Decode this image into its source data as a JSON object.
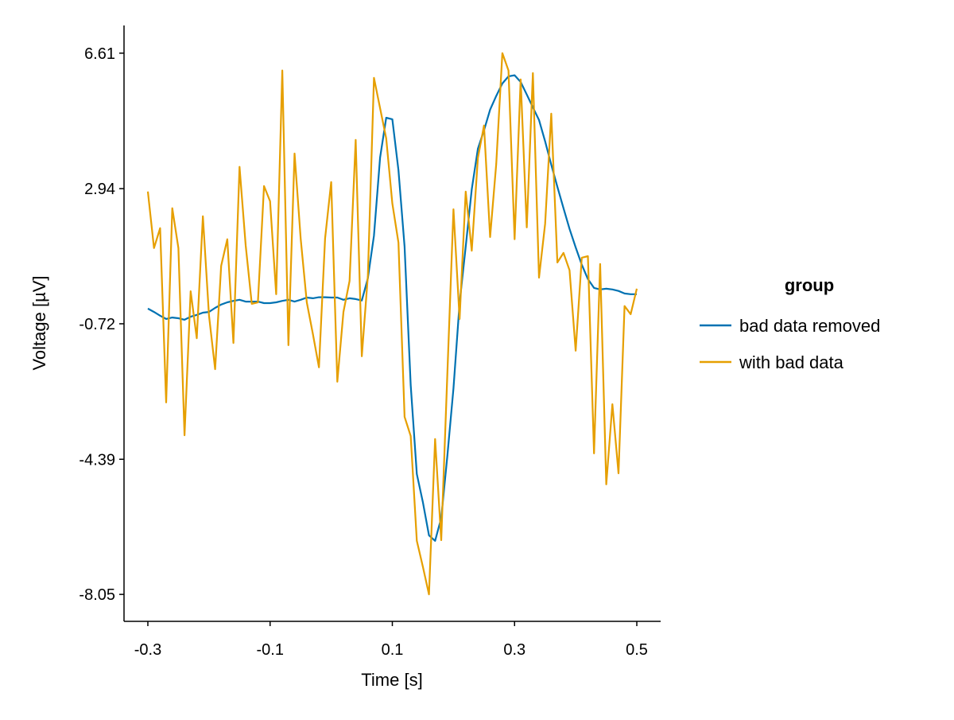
{
  "chart_data": {
    "type": "line",
    "title": "",
    "xlabel": "Time [s]",
    "ylabel": "Voltage [µV]",
    "xlim": [
      -0.339,
      0.539
    ],
    "ylim": [
      -8.78,
      7.36
    ],
    "xticks": [
      -0.3,
      -0.1,
      0.1,
      0.3,
      0.5
    ],
    "xtick_labels": [
      "-0.3",
      "-0.1",
      "0.1",
      "0.3",
      "0.5"
    ],
    "yticks": [
      6.61,
      2.94,
      -0.72,
      -4.39,
      -8.05
    ],
    "ytick_labels": [
      "6.61",
      "2.94",
      "-0.72",
      "-4.39",
      "-8.05"
    ],
    "grid": false,
    "legend": {
      "title": "group",
      "placement": "right"
    },
    "x_start": -0.3,
    "x_step": 0.01,
    "series": [
      {
        "name": "bad data removed",
        "color": "#0072B2",
        "values": [
          -0.31,
          -0.4,
          -0.5,
          -0.59,
          -0.55,
          -0.57,
          -0.61,
          -0.53,
          -0.48,
          -0.42,
          -0.4,
          -0.29,
          -0.2,
          -0.14,
          -0.1,
          -0.07,
          -0.12,
          -0.12,
          -0.12,
          -0.16,
          -0.16,
          -0.14,
          -0.1,
          -0.07,
          -0.12,
          -0.07,
          -0.01,
          -0.03,
          0.0,
          0.0,
          -0.01,
          -0.01,
          -0.07,
          -0.03,
          -0.05,
          -0.09,
          0.51,
          1.67,
          3.78,
          4.86,
          4.82,
          3.44,
          1.37,
          -2.38,
          -4.79,
          -5.55,
          -6.45,
          -6.6,
          -5.98,
          -4.3,
          -2.47,
          -0.16,
          1.37,
          2.92,
          4.02,
          4.52,
          5.08,
          5.45,
          5.79,
          5.98,
          6.01,
          5.83,
          5.49,
          5.14,
          4.8,
          4.22,
          3.59,
          2.99,
          2.41,
          1.85,
          1.35,
          0.88,
          0.49,
          0.25,
          0.21,
          0.23,
          0.21,
          0.17,
          0.1,
          0.08,
          0.08
        ]
      },
      {
        "name": "with bad data",
        "color": "#E69F00",
        "values": [
          2.86,
          1.33,
          1.87,
          -2.85,
          2.41,
          1.33,
          -3.74,
          0.16,
          -1.11,
          2.19,
          -0.5,
          -1.95,
          0.85,
          1.57,
          -1.24,
          3.53,
          1.41,
          -0.18,
          -0.14,
          3.01,
          2.6,
          0.08,
          6.14,
          -1.3,
          3.89,
          1.59,
          -0.14,
          -1.0,
          -1.9,
          1.59,
          3.12,
          -2.29,
          -0.4,
          0.44,
          4.26,
          -1.6,
          0.57,
          5.94,
          5.12,
          4.3,
          2.54,
          1.48,
          -3.24,
          -3.76,
          -6.6,
          -7.3,
          -8.05,
          -3.84,
          -6.58,
          -2.08,
          2.38,
          -0.59,
          2.86,
          1.26,
          3.77,
          4.65,
          1.63,
          3.61,
          6.61,
          6.14,
          1.57,
          5.9,
          1.89,
          6.07,
          0.53,
          1.99,
          4.97,
          0.94,
          1.2,
          0.73,
          -1.45,
          1.07,
          1.11,
          -4.23,
          0.9,
          -5.07,
          -2.9,
          -4.77,
          -0.24,
          -0.46,
          0.23
        ]
      }
    ]
  }
}
